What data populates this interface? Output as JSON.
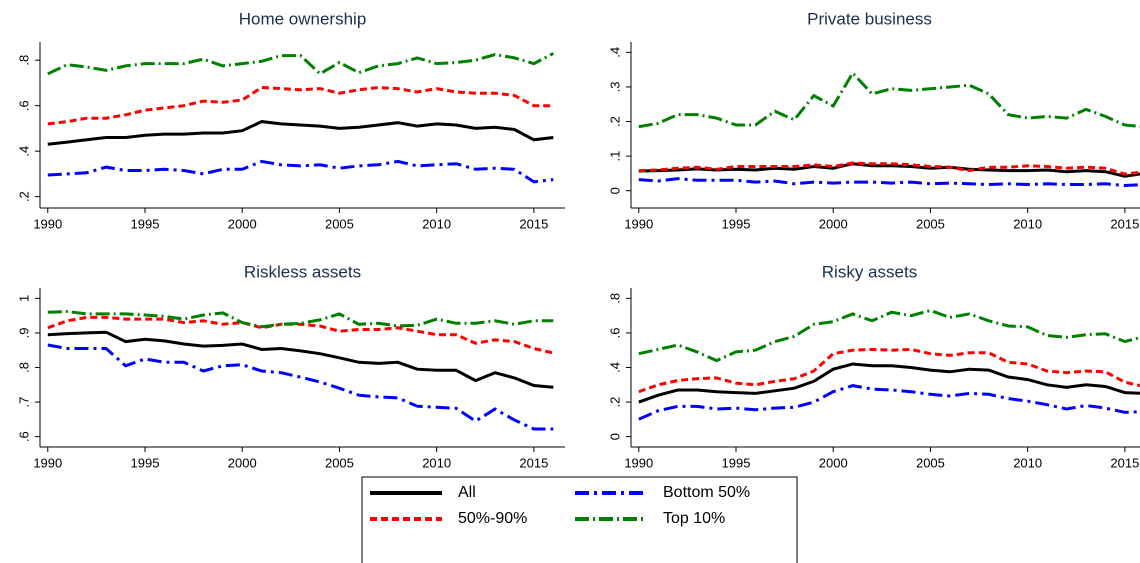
{
  "chart_data": [
    {
      "type": "line",
      "title": "Home ownership",
      "x": [
        1990,
        1991,
        1992,
        1993,
        1994,
        1995,
        1996,
        1997,
        1998,
        1999,
        2000,
        2001,
        2002,
        2003,
        2004,
        2005,
        2006,
        2007,
        2008,
        2009,
        2010,
        2011,
        2012,
        2013,
        2014,
        2015,
        2016
      ],
      "xlim": [
        1989.6,
        2016.6
      ],
      "xticks": [
        1990,
        1995,
        2000,
        2005,
        2010,
        2015
      ],
      "ylim": [
        0.15,
        0.88
      ],
      "yticks": [
        {
          "value": 0.2,
          "label": ".2"
        },
        {
          "value": 0.4,
          "label": ".4"
        },
        {
          "value": 0.6,
          "label": ".6"
        },
        {
          "value": 0.8,
          "label": ".8"
        }
      ],
      "series": [
        {
          "name": "All",
          "color": "#000000",
          "values": [
            0.43,
            0.44,
            0.45,
            0.46,
            0.46,
            0.47,
            0.475,
            0.475,
            0.48,
            0.48,
            0.49,
            0.53,
            0.52,
            0.515,
            0.51,
            0.5,
            0.505,
            0.515,
            0.525,
            0.51,
            0.52,
            0.515,
            0.5,
            0.505,
            0.495,
            0.45,
            0.46
          ]
        },
        {
          "name": "Bottom 50%",
          "color": "#0000ff",
          "values": [
            0.295,
            0.3,
            0.305,
            0.33,
            0.315,
            0.315,
            0.32,
            0.315,
            0.3,
            0.32,
            0.32,
            0.355,
            0.34,
            0.335,
            0.34,
            0.325,
            0.335,
            0.34,
            0.355,
            0.335,
            0.34,
            0.345,
            0.32,
            0.325,
            0.32,
            0.265,
            0.275
          ]
        },
        {
          "name": "50%-90%",
          "color": "#ff0000",
          "values": [
            0.52,
            0.53,
            0.545,
            0.545,
            0.56,
            0.58,
            0.59,
            0.6,
            0.62,
            0.615,
            0.625,
            0.68,
            0.675,
            0.67,
            0.675,
            0.655,
            0.67,
            0.68,
            0.675,
            0.66,
            0.675,
            0.66,
            0.655,
            0.655,
            0.645,
            0.6,
            0.6
          ]
        },
        {
          "name": "Top 10%",
          "color": "#008000",
          "values": [
            0.74,
            0.78,
            0.77,
            0.755,
            0.775,
            0.785,
            0.785,
            0.785,
            0.805,
            0.775,
            0.785,
            0.795,
            0.82,
            0.82,
            0.74,
            0.79,
            0.745,
            0.775,
            0.785,
            0.81,
            0.785,
            0.79,
            0.8,
            0.825,
            0.81,
            0.785,
            0.83
          ]
        }
      ]
    },
    {
      "type": "line",
      "title": "Private business",
      "x": [
        1990,
        1991,
        1992,
        1993,
        1994,
        1995,
        1996,
        1997,
        1998,
        1999,
        2000,
        2001,
        2002,
        2003,
        2004,
        2005,
        2006,
        2007,
        2008,
        2009,
        2010,
        2011,
        2012,
        2013,
        2014,
        2015,
        2016
      ],
      "xlim": [
        1989.6,
        2016.6
      ],
      "xticks": [
        1990,
        1995,
        2000,
        2005,
        2010,
        2015
      ],
      "ylim": [
        -0.05,
        0.43
      ],
      "yticks": [
        0,
        {
          "value": 0.1,
          "label": ".1"
        },
        {
          "value": 0.2,
          "label": ".2"
        },
        {
          "value": 0.3,
          "label": ".3"
        },
        {
          "value": 0.4,
          "label": ".4"
        }
      ],
      "series": [
        {
          "name": "All",
          "color": "#000000",
          "values": [
            0.057,
            0.058,
            0.06,
            0.063,
            0.06,
            0.062,
            0.06,
            0.065,
            0.062,
            0.07,
            0.065,
            0.078,
            0.072,
            0.072,
            0.07,
            0.065,
            0.068,
            0.062,
            0.06,
            0.058,
            0.058,
            0.06,
            0.055,
            0.058,
            0.055,
            0.042,
            0.05
          ]
        },
        {
          "name": "Bottom 50%",
          "color": "#0000ff",
          "values": [
            0.032,
            0.028,
            0.035,
            0.03,
            0.03,
            0.03,
            0.025,
            0.028,
            0.02,
            0.025,
            0.022,
            0.025,
            0.025,
            0.022,
            0.025,
            0.02,
            0.022,
            0.02,
            0.018,
            0.02,
            0.018,
            0.02,
            0.018,
            0.018,
            0.02,
            0.015,
            0.018
          ]
        },
        {
          "name": "50%-90%",
          "color": "#ff0000",
          "values": [
            0.058,
            0.06,
            0.065,
            0.068,
            0.062,
            0.07,
            0.07,
            0.07,
            0.07,
            0.075,
            0.07,
            0.08,
            0.078,
            0.078,
            0.075,
            0.07,
            0.068,
            0.058,
            0.068,
            0.068,
            0.072,
            0.07,
            0.065,
            0.068,
            0.065,
            0.048,
            0.055
          ]
        },
        {
          "name": "Top 10%",
          "color": "#008000",
          "values": [
            0.185,
            0.195,
            0.22,
            0.22,
            0.21,
            0.19,
            0.19,
            0.23,
            0.205,
            0.275,
            0.245,
            0.34,
            0.28,
            0.295,
            0.29,
            0.295,
            0.3,
            0.305,
            0.28,
            0.22,
            0.21,
            0.215,
            0.21,
            0.235,
            0.215,
            0.19,
            0.185
          ]
        }
      ]
    },
    {
      "type": "line",
      "title": "Riskless assets",
      "x": [
        1990,
        1991,
        1992,
        1993,
        1994,
        1995,
        1996,
        1997,
        1998,
        1999,
        2000,
        2001,
        2002,
        2003,
        2004,
        2005,
        2006,
        2007,
        2008,
        2009,
        2010,
        2011,
        2012,
        2013,
        2014,
        2015,
        2016
      ],
      "xlim": [
        1989.6,
        2016.6
      ],
      "xticks": [
        1990,
        1995,
        2000,
        2005,
        2010,
        2015
      ],
      "ylim": [
        0.57,
        1.03
      ],
      "yticks": [
        {
          "value": 0.6,
          "label": ".6"
        },
        {
          "value": 0.7,
          "label": ".7"
        },
        {
          "value": 0.8,
          "label": ".8"
        },
        {
          "value": 0.9,
          "label": ".9"
        },
        1
      ],
      "series": [
        {
          "name": "All",
          "color": "#000000",
          "values": [
            0.895,
            0.898,
            0.9,
            0.902,
            0.875,
            0.882,
            0.877,
            0.868,
            0.862,
            0.864,
            0.868,
            0.852,
            0.855,
            0.848,
            0.84,
            0.828,
            0.815,
            0.812,
            0.815,
            0.795,
            0.792,
            0.792,
            0.762,
            0.785,
            0.77,
            0.748,
            0.743
          ]
        },
        {
          "name": "Bottom 50%",
          "color": "#0000ff",
          "values": [
            0.865,
            0.855,
            0.855,
            0.855,
            0.805,
            0.825,
            0.815,
            0.815,
            0.79,
            0.805,
            0.808,
            0.79,
            0.785,
            0.772,
            0.758,
            0.74,
            0.72,
            0.715,
            0.712,
            0.688,
            0.685,
            0.682,
            0.645,
            0.68,
            0.648,
            0.622,
            0.622
          ]
        },
        {
          "name": "50%-90%",
          "color": "#ff0000",
          "values": [
            0.915,
            0.935,
            0.945,
            0.945,
            0.94,
            0.94,
            0.94,
            0.93,
            0.935,
            0.925,
            0.93,
            0.915,
            0.925,
            0.925,
            0.92,
            0.905,
            0.91,
            0.91,
            0.915,
            0.905,
            0.895,
            0.895,
            0.87,
            0.88,
            0.875,
            0.855,
            0.842
          ]
        },
        {
          "name": "Top 10%",
          "color": "#008000",
          "values": [
            0.96,
            0.962,
            0.955,
            0.955,
            0.955,
            0.952,
            0.948,
            0.94,
            0.952,
            0.958,
            0.93,
            0.918,
            0.925,
            0.928,
            0.938,
            0.955,
            0.925,
            0.928,
            0.92,
            0.922,
            0.94,
            0.928,
            0.928,
            0.935,
            0.925,
            0.935,
            0.935
          ]
        }
      ]
    },
    {
      "type": "line",
      "title": "Risky assets",
      "x": [
        1990,
        1991,
        1992,
        1993,
        1994,
        1995,
        1996,
        1997,
        1998,
        1999,
        2000,
        2001,
        2002,
        2003,
        2004,
        2005,
        2006,
        2007,
        2008,
        2009,
        2010,
        2011,
        2012,
        2013,
        2014,
        2015,
        2016
      ],
      "xlim": [
        1989.6,
        2016.6
      ],
      "xticks": [
        1990,
        1995,
        2000,
        2005,
        2010,
        2015
      ],
      "ylim": [
        -0.06,
        0.86
      ],
      "yticks": [
        0,
        {
          "value": 0.2,
          "label": ".2"
        },
        {
          "value": 0.4,
          "label": ".4"
        },
        {
          "value": 0.6,
          "label": ".6"
        },
        {
          "value": 0.8,
          "label": ".8"
        }
      ],
      "series": [
        {
          "name": "All",
          "color": "#000000",
          "values": [
            0.2,
            0.24,
            0.27,
            0.27,
            0.26,
            0.255,
            0.25,
            0.265,
            0.28,
            0.32,
            0.39,
            0.42,
            0.41,
            0.41,
            0.4,
            0.385,
            0.375,
            0.39,
            0.385,
            0.345,
            0.33,
            0.3,
            0.285,
            0.3,
            0.29,
            0.255,
            0.25
          ]
        },
        {
          "name": "Bottom 50%",
          "color": "#0000ff",
          "values": [
            0.1,
            0.15,
            0.175,
            0.175,
            0.16,
            0.165,
            0.155,
            0.165,
            0.17,
            0.2,
            0.26,
            0.295,
            0.275,
            0.27,
            0.26,
            0.245,
            0.235,
            0.25,
            0.245,
            0.22,
            0.205,
            0.185,
            0.16,
            0.18,
            0.165,
            0.14,
            0.145
          ]
        },
        {
          "name": "50%-90%",
          "color": "#ff0000",
          "values": [
            0.26,
            0.3,
            0.325,
            0.335,
            0.34,
            0.31,
            0.3,
            0.32,
            0.335,
            0.38,
            0.48,
            0.5,
            0.505,
            0.5,
            0.505,
            0.48,
            0.47,
            0.485,
            0.485,
            0.43,
            0.42,
            0.38,
            0.37,
            0.38,
            0.375,
            0.315,
            0.29
          ]
        },
        {
          "name": "Top 10%",
          "color": "#008000",
          "values": [
            0.48,
            0.505,
            0.53,
            0.49,
            0.44,
            0.49,
            0.5,
            0.55,
            0.58,
            0.65,
            0.665,
            0.71,
            0.67,
            0.72,
            0.7,
            0.73,
            0.69,
            0.71,
            0.67,
            0.64,
            0.635,
            0.585,
            0.575,
            0.59,
            0.595,
            0.55,
            0.58
          ]
        }
      ]
    }
  ]
}
